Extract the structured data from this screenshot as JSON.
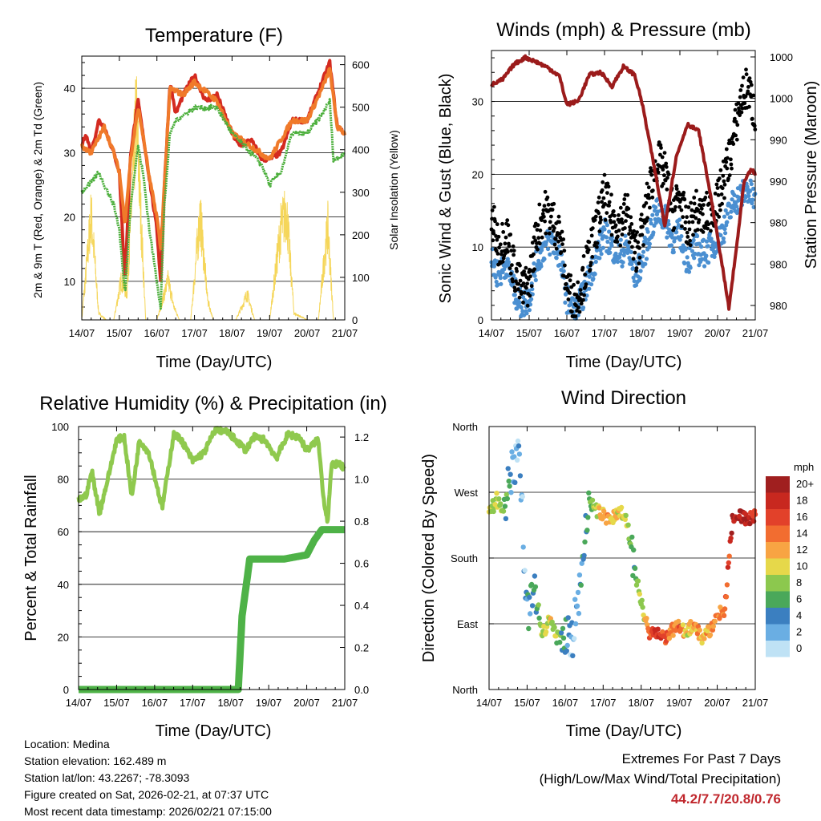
{
  "footer": {
    "location": "Location: Medina",
    "elevation": "Station elevation: 162.489 m",
    "latlon": "Station lat/lon: 43.2267; -78.3093",
    "created": "Figure created on Sat, 2026-02-21, at 07:37 UTC",
    "recent": "Most recent data timestamp: 2026/02/21 07:15:00"
  },
  "extremes": {
    "title": "Extremes For Past 7 Days",
    "subtitle": "(High/Low/Max Wind/Total Precipitation)",
    "values": "44.2/7.7/20.8/0.76"
  },
  "chart_data": [
    {
      "id": "temperature",
      "type": "line",
      "title": "Temperature (F)",
      "xlabel": "Time (Day/UTC)",
      "ylabel": "2m & 9m T (Red, Orange) & 2m Td (Green)",
      "ylabel_right": "Solar Insolation (Yellow)",
      "categories": [
        "14/07",
        "15/07",
        "16/07",
        "17/07",
        "18/07",
        "19/07",
        "20/07",
        "21/07"
      ],
      "xlim": [
        0,
        7
      ],
      "ylim": [
        4,
        45
      ],
      "yticks": [
        10,
        20,
        30,
        40
      ],
      "ylim_right": [
        0,
        620
      ],
      "yticks_right": [
        0,
        100,
        200,
        300,
        400,
        500,
        600
      ],
      "series": [
        {
          "name": "2m T",
          "color": "#d42a20",
          "x": [
            0,
            0.1,
            0.25,
            0.45,
            0.6,
            0.85,
            1.0,
            1.15,
            1.3,
            1.5,
            1.65,
            1.8,
            2.0,
            2.1,
            2.2,
            2.35,
            2.5,
            2.7,
            3.0,
            3.3,
            3.6,
            4.0,
            4.2,
            4.5,
            4.8,
            5.0,
            5.3,
            5.6,
            6.0,
            6.2,
            6.4,
            6.6,
            6.8,
            7.0
          ],
          "values": [
            31,
            33,
            30,
            35,
            34,
            30,
            27,
            10,
            30,
            38,
            32,
            26,
            18,
            10,
            25,
            41,
            36,
            39,
            42,
            38,
            39,
            33,
            31,
            32,
            29,
            29,
            30,
            35,
            35,
            38,
            41,
            44,
            34,
            33
          ]
        },
        {
          "name": "9m T",
          "color": "#f07a2a",
          "x": [
            0,
            0.25,
            0.6,
            0.85,
            1.0,
            1.15,
            1.3,
            1.5,
            1.65,
            1.8,
            2.0,
            2.1,
            2.2,
            2.35,
            2.7,
            3.0,
            3.6,
            4.0,
            4.5,
            5.0,
            5.6,
            6.0,
            6.4,
            6.6,
            6.8,
            7.0
          ],
          "values": [
            31,
            30,
            34,
            30,
            27,
            19,
            29,
            37,
            32,
            26,
            20,
            15,
            25,
            40,
            39,
            41,
            38,
            33,
            31,
            29,
            35,
            35,
            40,
            43,
            34,
            33
          ]
        },
        {
          "name": "2m Td",
          "color": "#4caf3c",
          "x": [
            0,
            0.2,
            0.45,
            0.6,
            0.85,
            1.0,
            1.15,
            1.3,
            1.5,
            1.65,
            1.8,
            2.0,
            2.1,
            2.2,
            2.35,
            2.5,
            3.0,
            3.6,
            4.0,
            4.5,
            4.8,
            5.0,
            5.3,
            5.6,
            6.0,
            6.4,
            6.6,
            6.7,
            6.8,
            7.0
          ],
          "values": [
            24,
            25,
            27,
            25,
            22,
            18,
            8,
            22,
            31,
            26,
            18,
            10,
            6,
            22,
            33,
            35,
            37,
            37,
            33,
            30,
            28,
            25,
            27,
            33,
            33,
            36,
            38,
            29,
            29,
            30
          ]
        },
        {
          "name": "Solar Insolation",
          "color": "#f5d65a",
          "axis": "right",
          "x": [
            0,
            0.25,
            0.45,
            0.65,
            0.85,
            1.05,
            1.2,
            1.45,
            1.7,
            2.0,
            2.3,
            2.45,
            2.6,
            2.9,
            3.15,
            3.35,
            3.5,
            3.8,
            4.1,
            4.3,
            4.4,
            4.6,
            5.0,
            5.3,
            5.45,
            5.65,
            6.0,
            6.3,
            6.45,
            6.55,
            6.7,
            7.0
          ],
          "values": [
            0,
            320,
            20,
            0,
            0,
            120,
            80,
            620,
            0,
            0,
            120,
            40,
            0,
            0,
            320,
            60,
            0,
            0,
            0,
            50,
            80,
            0,
            0,
            280,
            330,
            20,
            0,
            0,
            180,
            280,
            0,
            0
          ]
        }
      ]
    },
    {
      "id": "winds",
      "type": "scatter",
      "title": "Winds (mph) & Pressure (mb)",
      "xlabel": "Time (Day/UTC)",
      "ylabel": "Sonic Wind & Gust (Blue, Black)",
      "ylabel_right": "Station Pressure (Maroon)",
      "categories": [
        "14/07",
        "15/07",
        "16/07",
        "17/07",
        "18/07",
        "19/07",
        "20/07",
        "21/07"
      ],
      "xlim": [
        0,
        7
      ],
      "ylim": [
        0,
        37
      ],
      "yticks": [
        0,
        10,
        20,
        30
      ],
      "right_tick_labels": [
        "1000",
        "1000",
        "990",
        "990",
        "980",
        "980",
        "980"
      ],
      "series": [
        {
          "name": "Wind",
          "color": "#4a8fd1",
          "x": [
            0,
            0.2,
            0.4,
            0.6,
            0.8,
            1.0,
            1.2,
            1.4,
            1.6,
            1.8,
            2.0,
            2.2,
            2.4,
            2.6,
            2.8,
            3.0,
            3.2,
            3.4,
            3.6,
            3.8,
            4.0,
            4.2,
            4.4,
            4.6,
            4.8,
            5.0,
            5.2,
            5.4,
            5.6,
            5.8,
            6.0,
            6.2,
            6.4,
            6.6,
            6.8,
            7.0
          ],
          "values": [
            8,
            6,
            8,
            4,
            2,
            3,
            8,
            10,
            11,
            9,
            3,
            1,
            3,
            6,
            9,
            12,
            10,
            9,
            10,
            6,
            8,
            12,
            15,
            14,
            11,
            12,
            8,
            10,
            9,
            10,
            11,
            13,
            16,
            17,
            18,
            16
          ]
        },
        {
          "name": "Gust",
          "color": "#000000",
          "x": [
            0,
            0.2,
            0.4,
            0.6,
            0.8,
            1.0,
            1.2,
            1.4,
            1.6,
            1.8,
            2.0,
            2.2,
            2.4,
            2.6,
            2.8,
            3.0,
            3.2,
            3.4,
            3.6,
            3.8,
            4.0,
            4.2,
            4.4,
            4.6,
            4.8,
            5.0,
            5.2,
            5.4,
            5.6,
            5.8,
            6.0,
            6.2,
            6.4,
            6.6,
            6.8,
            7.0
          ],
          "values": [
            14,
            10,
            12,
            7,
            4,
            5,
            12,
            15,
            14,
            12,
            5,
            2,
            5,
            9,
            13,
            17,
            14,
            13,
            15,
            9,
            12,
            18,
            22,
            20,
            15,
            17,
            12,
            15,
            14,
            15,
            16,
            20,
            24,
            30,
            32,
            28
          ]
        },
        {
          "name": "Pressure",
          "color": "#9b1b1b",
          "unit": "mb",
          "x": [
            0,
            0.3,
            0.6,
            0.9,
            1.2,
            1.5,
            1.8,
            2.0,
            2.3,
            2.6,
            2.9,
            3.2,
            3.5,
            3.8,
            4.0,
            4.3,
            4.6,
            4.9,
            5.2,
            5.5,
            5.8,
            6.1,
            6.3,
            6.5,
            6.7,
            6.9,
            7.0
          ],
          "values": [
            1000.8,
            1001.3,
            1002.6,
            1003.2,
            1002.8,
            1002.3,
            1001.6,
            999.1,
            999.4,
            1001.7,
            1001.9,
            1000.7,
            1002.4,
            1001.7,
            999.2,
            994.0,
            988.6,
            994.5,
            997.4,
            996.8,
            991.5,
            985.6,
            981.4,
            986.6,
            992.3,
            993.5,
            993.0
          ]
        }
      ]
    },
    {
      "id": "humidity",
      "type": "line",
      "title": "Relative Humidity (%) & Precipitation (in)",
      "xlabel": "Time (Day/UTC)",
      "ylabel": "Percent & Total Rainfall",
      "categories": [
        "14/07",
        "15/07",
        "16/07",
        "17/07",
        "18/07",
        "19/07",
        "20/07",
        "21/07"
      ],
      "xlim": [
        0,
        7
      ],
      "ylim": [
        0,
        100
      ],
      "yticks": [
        0,
        20,
        40,
        60,
        80,
        100
      ],
      "ylim_right": [
        0,
        1.25
      ],
      "yticks_right": [
        "0.0",
        "0.2",
        "0.4",
        "0.6",
        "0.8",
        "1.0",
        "1.2"
      ],
      "series": [
        {
          "name": "Relative Humidity",
          "color": "#8fc94e",
          "x": [
            0,
            0.2,
            0.35,
            0.55,
            0.8,
            1.0,
            1.2,
            1.4,
            1.6,
            1.85,
            2.0,
            2.2,
            2.5,
            2.7,
            3.0,
            3.3,
            3.6,
            3.9,
            4.2,
            4.4,
            4.6,
            4.9,
            5.2,
            5.5,
            5.8,
            6.0,
            6.3,
            6.45,
            6.55,
            6.65,
            6.8,
            7.0
          ],
          "values": [
            72,
            74,
            83,
            67,
            82,
            95,
            96,
            73,
            95,
            90,
            81,
            69,
            97,
            95,
            87,
            90,
            99,
            98,
            94,
            91,
            96,
            95,
            88,
            97,
            96,
            91,
            95,
            72,
            64,
            85,
            86,
            84
          ]
        },
        {
          "name": "Total Precipitation",
          "color": "#4eb247",
          "axis": "right",
          "unit": "in",
          "x": [
            0,
            4.2,
            4.3,
            4.45,
            4.5,
            4.7,
            5.0,
            5.4,
            5.7,
            6.0,
            6.2,
            6.4,
            6.6,
            6.8,
            7.0
          ],
          "values": [
            0,
            0,
            0.35,
            0.55,
            0.62,
            0.62,
            0.62,
            0.62,
            0.63,
            0.64,
            0.71,
            0.76,
            0.76,
            0.76,
            0.76
          ]
        }
      ]
    },
    {
      "id": "direction",
      "type": "scatter",
      "title": "Wind Direction",
      "xlabel": "Time (Day/UTC)",
      "ylabel": "Direction (Colored By Speed)",
      "categories": [
        "14/07",
        "15/07",
        "16/07",
        "17/07",
        "18/07",
        "19/07",
        "20/07",
        "21/07"
      ],
      "xlim": [
        0,
        7
      ],
      "ylim": [
        0,
        360
      ],
      "ytick_values": [
        0,
        90,
        180,
        270,
        360
      ],
      "ytick_labels": [
        "North",
        "East",
        "South",
        "West",
        "North"
      ],
      "colorbar": {
        "title": "mph",
        "labels": [
          "20+",
          "18",
          "16",
          "14",
          "12",
          "10",
          "8",
          "6",
          "4",
          "2",
          "0"
        ],
        "colors": [
          "#a01f1f",
          "#c8281f",
          "#e2412a",
          "#f26d30",
          "#f8a443",
          "#e6d84a",
          "#8cc84e",
          "#4aa85a",
          "#3b7fc0",
          "#6aaee3",
          "#bfe2f5"
        ]
      },
      "series": [
        {
          "name": "Direction",
          "x": [
            0,
            0.2,
            0.4,
            0.6,
            0.8,
            1.0,
            1.2,
            1.4,
            1.6,
            1.8,
            2.0,
            2.2,
            2.4,
            2.6,
            2.8,
            3.0,
            3.2,
            3.4,
            3.6,
            3.8,
            4.0,
            4.2,
            4.4,
            4.6,
            4.8,
            5.0,
            5.2,
            5.4,
            5.6,
            5.8,
            6.0,
            6.2,
            6.4,
            6.6,
            6.8,
            7.0
          ],
          "values": [
            240,
            260,
            245,
            300,
            330,
            100,
            140,
            75,
            95,
            70,
            80,
            75,
            140,
            260,
            245,
            240,
            230,
            245,
            240,
            170,
            120,
            80,
            75,
            70,
            80,
            85,
            80,
            90,
            70,
            80,
            100,
            110,
            235,
            240,
            230,
            240
          ],
          "speeds": [
            8,
            9,
            7,
            3,
            2,
            3,
            5,
            9,
            10,
            8,
            4,
            2,
            3,
            6,
            9,
            12,
            11,
            10,
            10,
            6,
            8,
            14,
            18,
            16,
            13,
            14,
            10,
            13,
            11,
            12,
            13,
            14,
            18,
            20,
            19,
            17
          ]
        }
      ]
    }
  ]
}
